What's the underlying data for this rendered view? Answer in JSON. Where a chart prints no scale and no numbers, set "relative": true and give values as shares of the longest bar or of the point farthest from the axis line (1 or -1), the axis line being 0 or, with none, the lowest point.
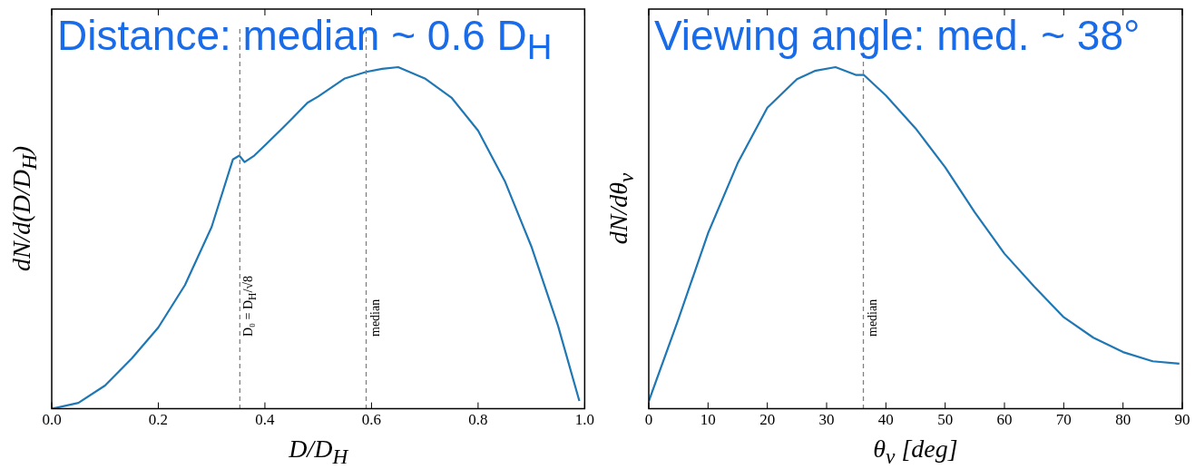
{
  "chart_data": [
    {
      "type": "line",
      "title": "Distance: median ~ 0.6 D$_{H}$",
      "xlabel": "D/D$_{H}$",
      "ylabel": "dN/d(D/D$_{H}$)",
      "relative": true,
      "tick_labels": "x",
      "color": "#1f77b4",
      "x": [
        0,
        0.05,
        0.1,
        0.15,
        0.2,
        0.25,
        0.3,
        0.34,
        0.352,
        0.362,
        0.38,
        0.4,
        0.43,
        0.45,
        0.48,
        0.5,
        0.55,
        0.59,
        0.62,
        0.65,
        0.7,
        0.75,
        0.8,
        0.85,
        0.9,
        0.95,
        0.99
      ],
      "values": [
        0,
        0.017,
        0.068,
        0.147,
        0.238,
        0.362,
        0.532,
        0.73,
        0.741,
        0.722,
        0.741,
        0.771,
        0.817,
        0.848,
        0.896,
        0.914,
        0.967,
        0.986,
        0.995,
        1,
        0.967,
        0.911,
        0.814,
        0.667,
        0.475,
        0.243,
        0.023
      ],
      "xlim": [
        0,
        1
      ],
      "xticks": [
        {
          "value": 0,
          "label": "0.0"
        },
        0.2,
        0.4,
        0.6,
        0.8,
        {
          "value": 1,
          "label": "1.0"
        }
      ],
      "ref_lines": [
        {
          "axis": "x",
          "value": 0.353,
          "label": "D₀ = D$_{H}$/√8",
          "color": "#808080",
          "line_style": "dashed"
        },
        {
          "axis": "x",
          "value": 0.59,
          "label": "median",
          "color": "#808080",
          "line_style": "dashed"
        }
      ]
    },
    {
      "type": "line",
      "title": "Viewing angle: med. ~ 38°",
      "xlabel": "θ$_{v}$ [deg]",
      "ylabel": "dN/dθ$_{v}$",
      "relative": true,
      "tick_labels": "x",
      "color": "#1f77b4",
      "x": [
        0,
        5,
        10,
        15,
        20,
        25,
        28,
        31.5,
        35,
        36.3,
        40,
        45,
        50,
        55,
        60,
        65,
        70,
        75,
        80,
        85,
        89.5
      ],
      "values": [
        0.022,
        0.262,
        0.514,
        0.719,
        0.881,
        0.965,
        0.989,
        1,
        0.977,
        0.977,
        0.917,
        0.821,
        0.707,
        0.575,
        0.454,
        0.358,
        0.268,
        0.208,
        0.166,
        0.139,
        0.132
      ],
      "xlim": [
        0,
        90
      ],
      "xticks": [
        0,
        10,
        20,
        30,
        40,
        50,
        60,
        70,
        80,
        90
      ],
      "ref_lines": [
        {
          "axis": "x",
          "value": 36.2,
          "label": "median",
          "color": "#808080",
          "line_style": "dashed"
        }
      ]
    }
  ]
}
